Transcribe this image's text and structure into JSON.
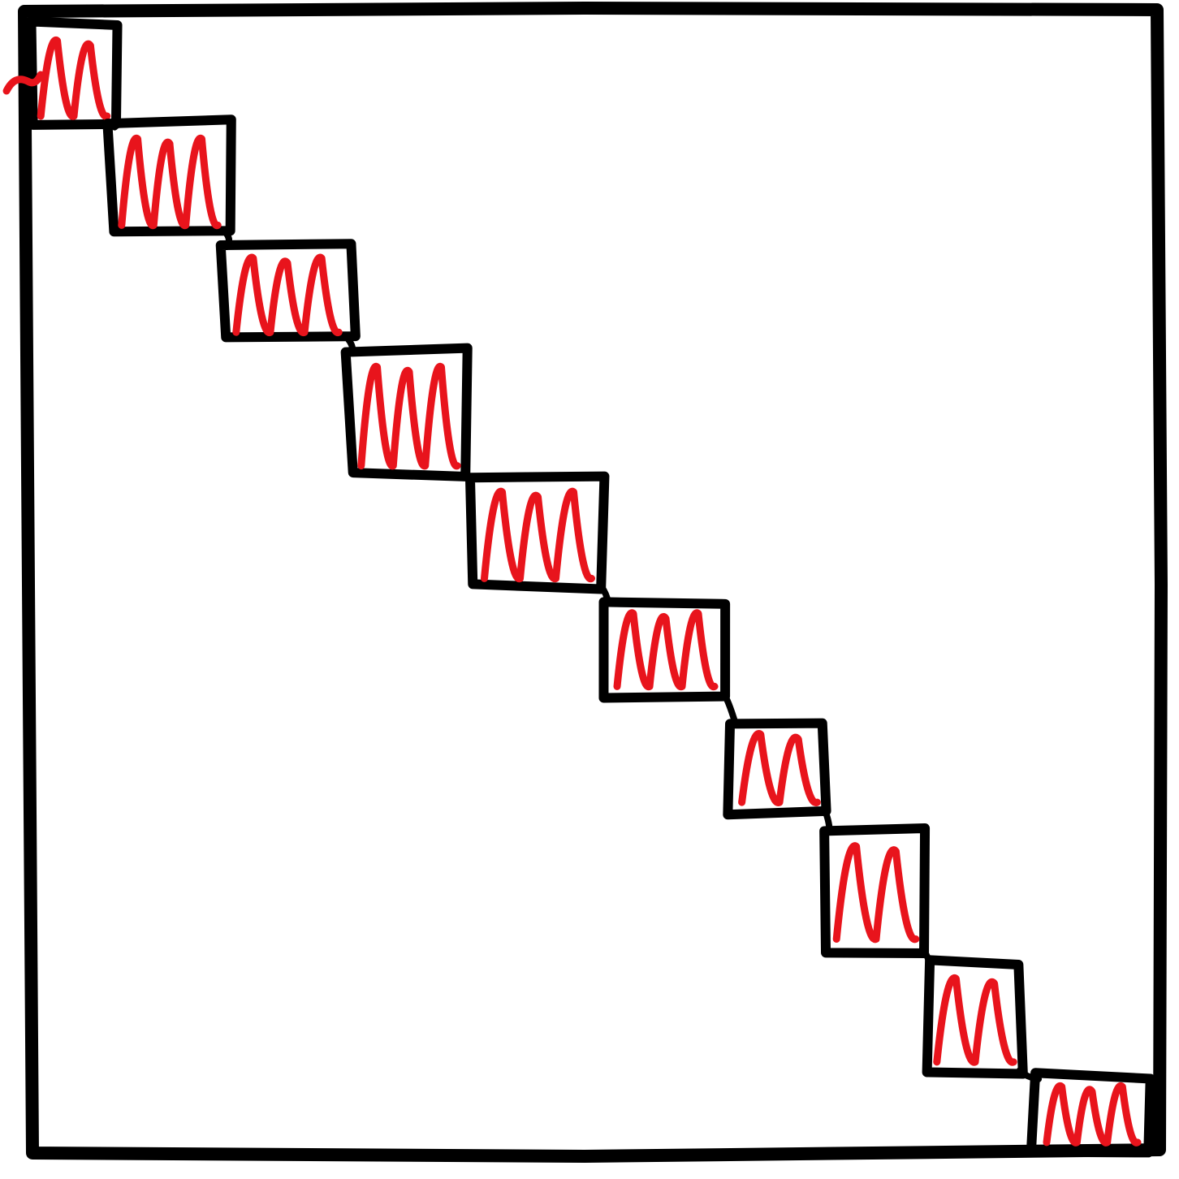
{
  "diagram": {
    "kind": "hand-drawn block diagonal sketch",
    "colors": {
      "background": "#ffffff",
      "stroke": "#000000",
      "scribble": "#e8141c"
    },
    "block_count": 10
  }
}
